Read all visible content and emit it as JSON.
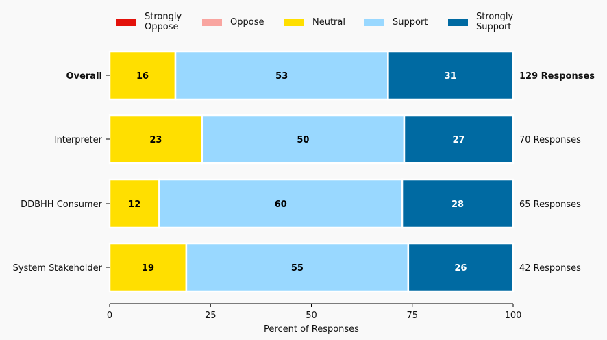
{
  "chart_data": {
    "type": "bar",
    "orientation": "horizontal",
    "stacked": true,
    "title": "",
    "xlabel": "Percent of Responses",
    "ylabel": "",
    "xlim": [
      0,
      100
    ],
    "xticks": [
      "0",
      "25",
      "50",
      "75",
      "100"
    ],
    "xtick_values": [
      0,
      25,
      50,
      75,
      100
    ],
    "grid": false,
    "legend_position": "top",
    "categories": [
      "Overall",
      "Interpreter",
      "DDBHH Consumer",
      "System Stakeholder"
    ],
    "category_bold": [
      true,
      false,
      false,
      false
    ],
    "response_labels": [
      "129 Responses",
      "70 Responses",
      "65 Responses",
      "42 Responses"
    ],
    "series": [
      {
        "name": "Strongly Oppose",
        "legend_lines": [
          "Strongly",
          "Oppose"
        ],
        "color": "#e3120b",
        "values": [
          0,
          0,
          0,
          0
        ],
        "labels": [
          "",
          "",
          "",
          ""
        ],
        "label_color": "#000000"
      },
      {
        "name": "Oppose",
        "legend_lines": [
          "Oppose"
        ],
        "color": "#f9a5a0",
        "values": [
          0,
          0,
          0,
          0
        ],
        "labels": [
          "",
          "",
          "",
          ""
        ],
        "label_color": "#000000"
      },
      {
        "name": "Neutral",
        "legend_lines": [
          "Neutral"
        ],
        "color": "#ffdf00",
        "values": [
          16.3,
          22.9,
          12.3,
          19.0
        ],
        "labels": [
          "16",
          "23",
          "12",
          "19"
        ],
        "label_color": "#000000"
      },
      {
        "name": "Support",
        "legend_lines": [
          "Support"
        ],
        "color": "#99d8ff",
        "values": [
          52.7,
          50.1,
          60.2,
          55.0
        ],
        "labels": [
          "53",
          "50",
          "60",
          "55"
        ],
        "label_color": "#000000"
      },
      {
        "name": "Strongly Support",
        "legend_lines": [
          "Strongly",
          "Support"
        ],
        "color": "#006aa2",
        "values": [
          31.0,
          27.0,
          27.5,
          26.0
        ],
        "labels": [
          "31",
          "27",
          "28",
          "26"
        ],
        "label_color": "#ffffff"
      }
    ]
  }
}
